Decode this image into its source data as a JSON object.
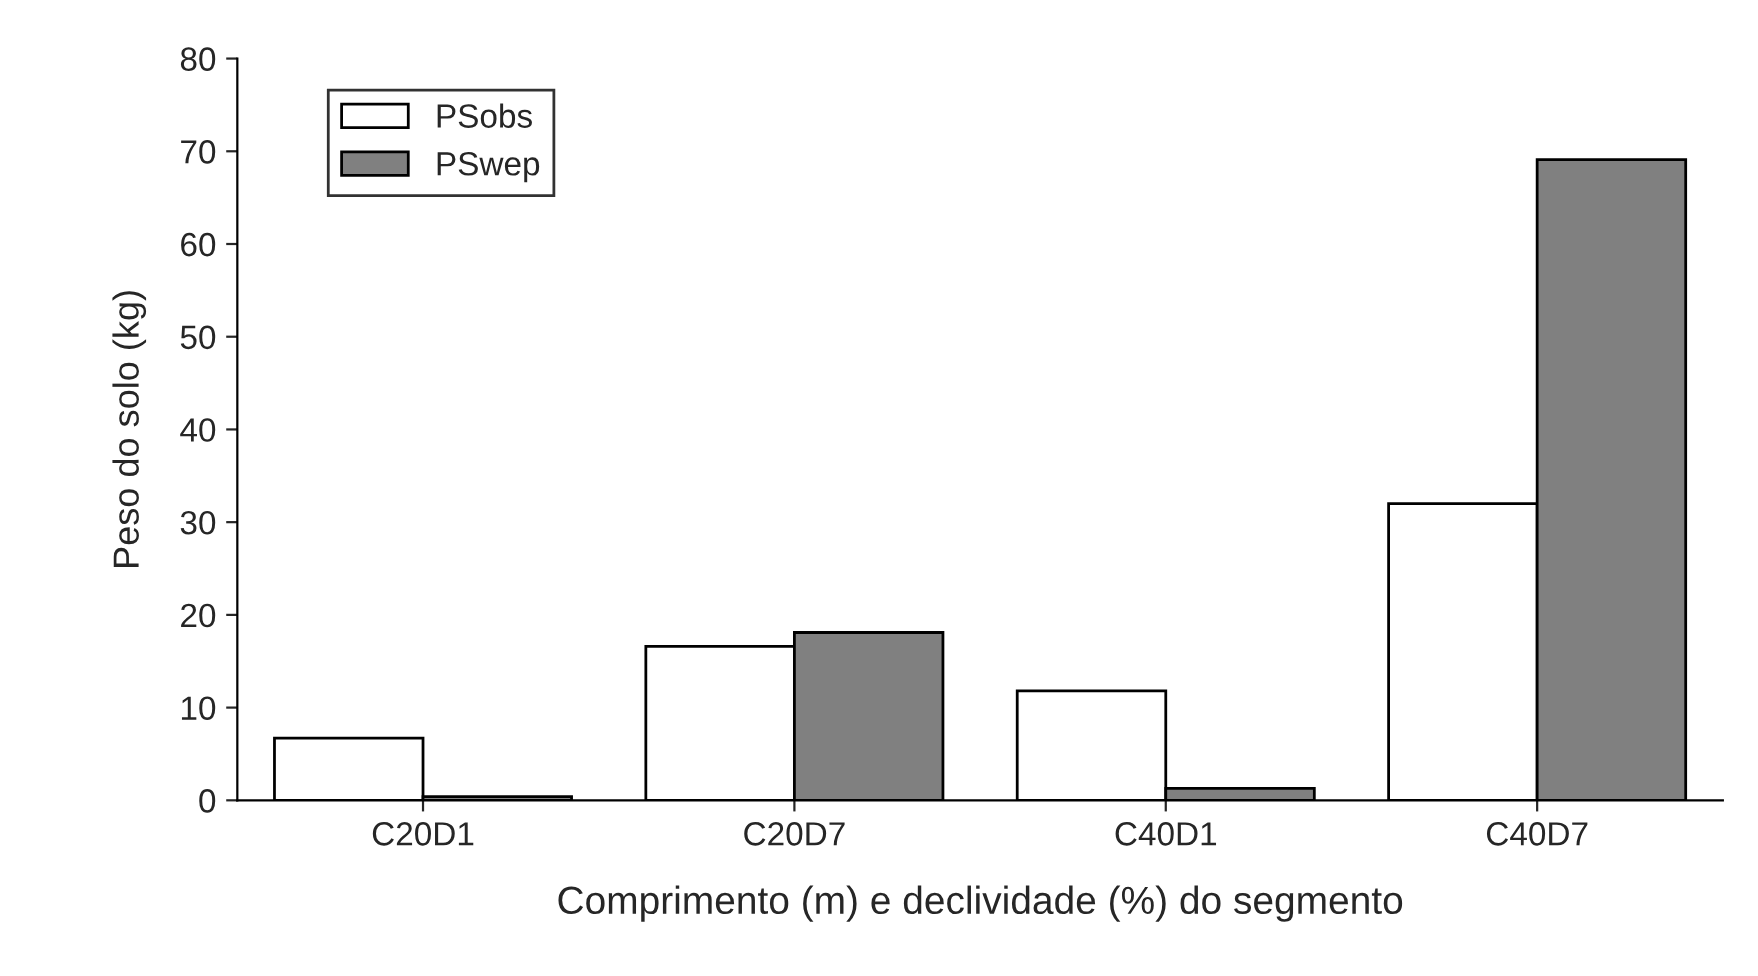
{
  "chart_data": {
    "type": "bar",
    "xlabel": "Comprimento (m) e declividade (%) do segmento",
    "ylabel": "Peso do solo (kg)",
    "categories": [
      "C20D1",
      "C20D7",
      "C40D1",
      "C40D7"
    ],
    "series": [
      {
        "name": "PSobs",
        "color": "#ffffff",
        "values": [
          6.7,
          16.6,
          11.8,
          32.0
        ]
      },
      {
        "name": "PSwep",
        "color": "#808080",
        "values": [
          0.4,
          18.1,
          1.3,
          69.1
        ]
      }
    ],
    "ylim": [
      0,
      80
    ],
    "yticks": [
      0,
      10,
      20,
      30,
      40,
      50,
      60,
      70,
      80
    ],
    "grid": false,
    "legend": "top left"
  }
}
